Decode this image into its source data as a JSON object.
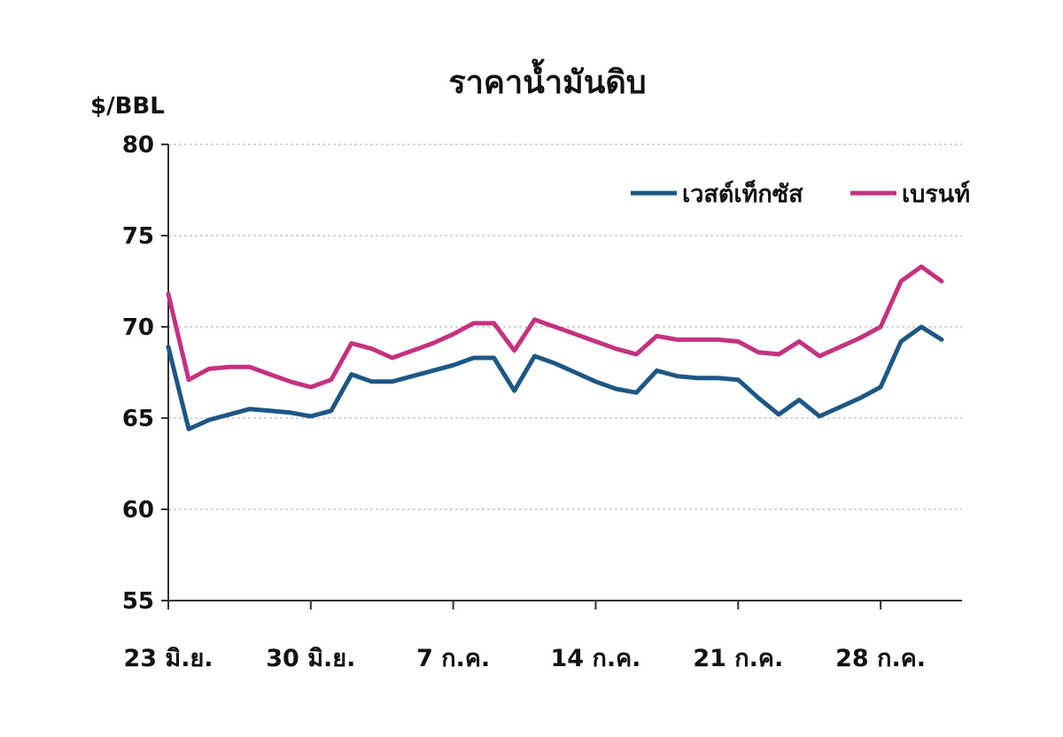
{
  "chart_data": {
    "type": "line",
    "title": "ราคาน้ำมันดิบ",
    "ylabel": "$/BBL",
    "xlabel": "",
    "ylim": [
      55,
      80
    ],
    "yticks": [
      80,
      75,
      70,
      65,
      60,
      55
    ],
    "x_tick_labels": [
      "23 มิ.ย.",
      "30 มิ.ย.",
      "7 ก.ค.",
      "14 ก.ค.",
      "21 ก.ค.",
      "28 ก.ค."
    ],
    "x_tick_points": [
      0,
      7,
      14,
      21,
      28,
      35
    ],
    "x_points_count": 39,
    "grid": true,
    "legend_position": "top-right",
    "series": [
      {
        "name": "เวสต์เท็กซัส",
        "color": "#1d5784",
        "values": [
          68.9,
          64.4,
          64.9,
          65.2,
          65.5,
          65.4,
          65.3,
          65.1,
          65.4,
          67.4,
          67.0,
          67.0,
          67.3,
          67.6,
          67.9,
          68.3,
          68.3,
          66.5,
          68.4,
          68.0,
          67.5,
          67.0,
          66.6,
          66.4,
          67.6,
          67.3,
          67.2,
          67.2,
          67.1,
          66.1,
          65.2,
          66.0,
          65.1,
          65.6,
          66.1,
          66.7,
          69.2,
          70.0,
          69.3
        ]
      },
      {
        "name": "เบรนท์",
        "color": "#c4327f",
        "values": [
          71.8,
          67.1,
          67.7,
          67.8,
          67.8,
          67.4,
          67.0,
          66.7,
          67.1,
          69.1,
          68.8,
          68.3,
          68.7,
          69.1,
          69.6,
          70.2,
          70.2,
          68.7,
          70.4,
          70.0,
          69.6,
          69.2,
          68.8,
          68.5,
          69.5,
          69.3,
          69.3,
          69.3,
          69.2,
          68.6,
          68.5,
          69.2,
          68.4,
          68.9,
          69.4,
          70.0,
          72.5,
          73.3,
          72.5
        ]
      }
    ]
  }
}
